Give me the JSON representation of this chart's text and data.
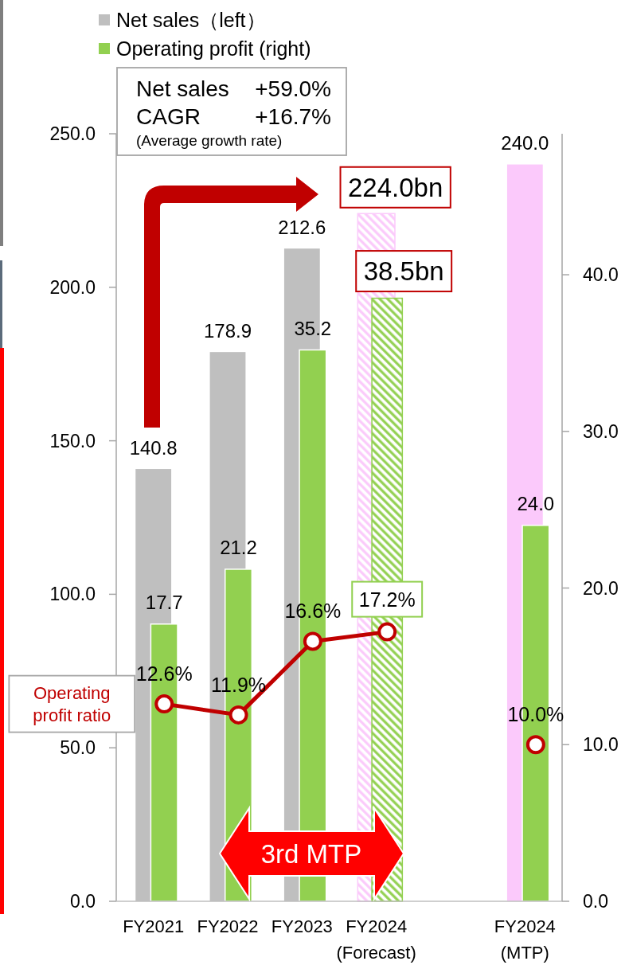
{
  "chart_data": {
    "type": "bar",
    "categories": [
      "FY2021",
      "FY2022",
      "FY2023",
      "FY2024\n(Forecast)",
      null,
      "FY2024\n(MTP)"
    ],
    "series": [
      {
        "name": "Net sales（left）",
        "color": "#bfbfbf",
        "colors": [
          "#bfbfbf",
          "#bfbfbf",
          "#bfbfbf",
          null,
          null,
          "#fbc9fb"
        ],
        "values": [
          140.8,
          178.9,
          212.6,
          null,
          null,
          240.0
        ],
        "value_labels": [
          "140.8",
          "178.9",
          "212.6",
          null,
          null,
          "240.0"
        ]
      },
      {
        "name": "Operating profit (right)",
        "axis": "y2",
        "color": "#92d050",
        "values": [
          17.7,
          21.2,
          35.2,
          null,
          null,
          24.0
        ],
        "value_labels": [
          "17.7",
          "21.2",
          "35.2",
          null,
          null,
          "24.0"
        ]
      },
      {
        "color": "#fbc9fb",
        "values": [
          null,
          null,
          null,
          224.0,
          null,
          null
        ],
        "value_labels": [
          null,
          null,
          null,
          "224.0bn",
          null,
          null
        ]
      },
      {
        "axis": "y2",
        "color": "#92d050",
        "values": [
          null,
          null,
          null,
          38.5,
          null,
          null
        ],
        "value_labels": [
          null,
          null,
          null,
          "38.5bn",
          null,
          null
        ]
      },
      {
        "name": "Operating\nprofit ratio",
        "type": "line",
        "axis": "y2",
        "color": "#c00000",
        "marker": "circle",
        "line_style": "solid",
        "values": [
          12.6,
          11.9,
          16.6,
          17.2,
          null,
          10.0
        ],
        "value_labels": [
          "12.6%",
          "11.9%",
          "16.6%",
          "17.2%",
          null,
          "10.0%"
        ]
      }
    ],
    "ylim": [
      0,
      250
    ],
    "yticks": [
      {
        "value": 0,
        "label": "0.0"
      },
      {
        "value": 50,
        "label": "50.0"
      },
      {
        "value": 100,
        "label": "100.0"
      },
      {
        "value": 150,
        "label": "150.0"
      },
      {
        "value": 200,
        "label": "200.0"
      },
      {
        "value": 250,
        "label": "250.0"
      }
    ],
    "y2lim": [
      0,
      49
    ],
    "y2ticks": [
      {
        "value": 0,
        "label": "0.0"
      },
      {
        "value": 10,
        "label": "10.0"
      },
      {
        "value": 20,
        "label": "20.0"
      },
      {
        "value": 30,
        "label": "30.0"
      },
      {
        "value": 40,
        "label": "40.0"
      }
    ],
    "legend": "top left",
    "annotations": [
      "Net sales",
      "+59.0%",
      "CAGR",
      "+16.7%",
      "(Average growth rate)",
      "3rd MTP"
    ]
  }
}
